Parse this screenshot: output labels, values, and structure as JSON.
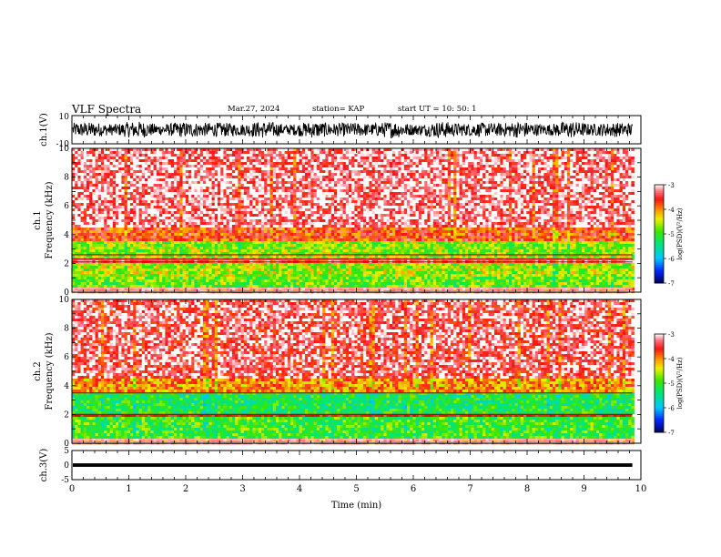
{
  "header": {
    "title": "VLF Spectra",
    "date": "Mar.27, 2024",
    "station": "station= KAP",
    "start": "start  UT =   10: 50: 1"
  },
  "chart_data": [
    {
      "type": "line",
      "panel": "ch1-waveform",
      "ylabel": "ch.1(V)",
      "ylim": [
        -10,
        10
      ],
      "yticks": [
        "10",
        "-10"
      ],
      "xlim": [
        0,
        10
      ],
      "description_values": {
        "amplitude_range_V": [
          -6,
          6
        ],
        "end_min": 9.85
      }
    },
    {
      "type": "heatmap",
      "panel": "ch1-spectrogram",
      "ylabel": [
        "ch.1",
        "Frequency  (kHz)"
      ],
      "ylim": [
        0,
        10
      ],
      "yticks": [
        "0",
        "2",
        "4",
        "6",
        "8",
        "10"
      ],
      "xlim": [
        0,
        10
      ],
      "colorbar": {
        "label": "log(PSD)(V²/Hz)",
        "ticks": [
          "-3",
          "-4",
          "-5",
          "-6",
          "-7"
        ],
        "range": [
          -7,
          -3
        ]
      },
      "bands_kHz": [
        {
          "from": 0.0,
          "to": 0.35,
          "level": -3.6
        },
        {
          "from": 0.35,
          "to": 1.0,
          "level": -4.8
        },
        {
          "from": 1.0,
          "to": 2.0,
          "level": -4.6
        },
        {
          "from": 2.0,
          "to": 2.3,
          "level": -3.5
        },
        {
          "from": 2.3,
          "to": 3.6,
          "level": -4.7
        },
        {
          "from": 3.6,
          "to": 4.5,
          "level": -3.7
        },
        {
          "from": 4.5,
          "to": 10.0,
          "level": -3.2
        }
      ],
      "lines_kHz": [
        2.1,
        2.3,
        2.6
      ]
    },
    {
      "type": "heatmap",
      "panel": "ch2-spectrogram",
      "ylabel": [
        "ch.2",
        "Frequency  (kHz)"
      ],
      "ylim": [
        0,
        10
      ],
      "yticks": [
        "0",
        "2",
        "4",
        "6",
        "8",
        "10"
      ],
      "xlim": [
        0,
        10
      ],
      "colorbar": {
        "label": "log(PSD)(V²/Hz)",
        "ticks": [
          "-3",
          "-4",
          "-5",
          "-6",
          "-7"
        ],
        "range": [
          -7,
          -3
        ]
      },
      "bands_kHz": [
        {
          "from": 0.0,
          "to": 0.3,
          "level": -3.6
        },
        {
          "from": 0.3,
          "to": 1.9,
          "level": -5.0
        },
        {
          "from": 1.9,
          "to": 2.1,
          "level": -3.5
        },
        {
          "from": 2.1,
          "to": 3.5,
          "level": -5.2
        },
        {
          "from": 3.5,
          "to": 4.5,
          "level": -4.0
        },
        {
          "from": 4.5,
          "to": 10.0,
          "level": -3.3
        }
      ],
      "lines_kHz": [
        1.9,
        2.0,
        3.5
      ]
    },
    {
      "type": "line",
      "panel": "ch3-waveform",
      "ylabel": "ch.3(V)",
      "ylim": [
        -5,
        5
      ],
      "yticks": [
        "5",
        "0",
        "-5"
      ],
      "xlim": [
        0,
        10
      ],
      "xlabel": "Time  (min)",
      "xticks": [
        "0",
        "1",
        "2",
        "3",
        "4",
        "5",
        "6",
        "7",
        "8",
        "9",
        "10"
      ],
      "description_values": {
        "level_V": 0,
        "band_halfwidth_V": 0.6,
        "end_min": 9.85
      }
    }
  ]
}
